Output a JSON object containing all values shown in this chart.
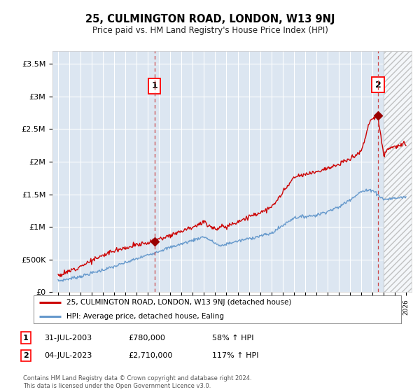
{
  "title": "25, CULMINGTON ROAD, LONDON, W13 9NJ",
  "subtitle": "Price paid vs. HM Land Registry's House Price Index (HPI)",
  "background_color": "#dce6f1",
  "plot_bg_color": "#dce6f1",
  "ylim": [
    0,
    3700000
  ],
  "yticks": [
    0,
    500000,
    1000000,
    1500000,
    2000000,
    2500000,
    3000000,
    3500000
  ],
  "ytick_labels": [
    "£0",
    "£500K",
    "£1M",
    "£1.5M",
    "£2M",
    "£2.5M",
    "£3M",
    "£3.5M"
  ],
  "sale1_x": 2003.58,
  "sale1_y": 780000,
  "sale2_x": 2023.5,
  "sale2_y": 2710000,
  "sale1_date": "31-JUL-2003",
  "sale1_price": "£780,000",
  "sale1_hpi": "58% ↑ HPI",
  "sale2_date": "04-JUL-2023",
  "sale2_price": "£2,710,000",
  "sale2_hpi": "117% ↑ HPI",
  "legend_label_red": "25, CULMINGTON ROAD, LONDON, W13 9NJ (detached house)",
  "legend_label_blue": "HPI: Average price, detached house, Ealing",
  "footer": "Contains HM Land Registry data © Crown copyright and database right 2024.\nThis data is licensed under the Open Government Licence v3.0.",
  "red_line_color": "#cc0000",
  "blue_line_color": "#6699cc",
  "xmin": 1994.5,
  "xmax": 2026.5,
  "future_start": 2024.0
}
